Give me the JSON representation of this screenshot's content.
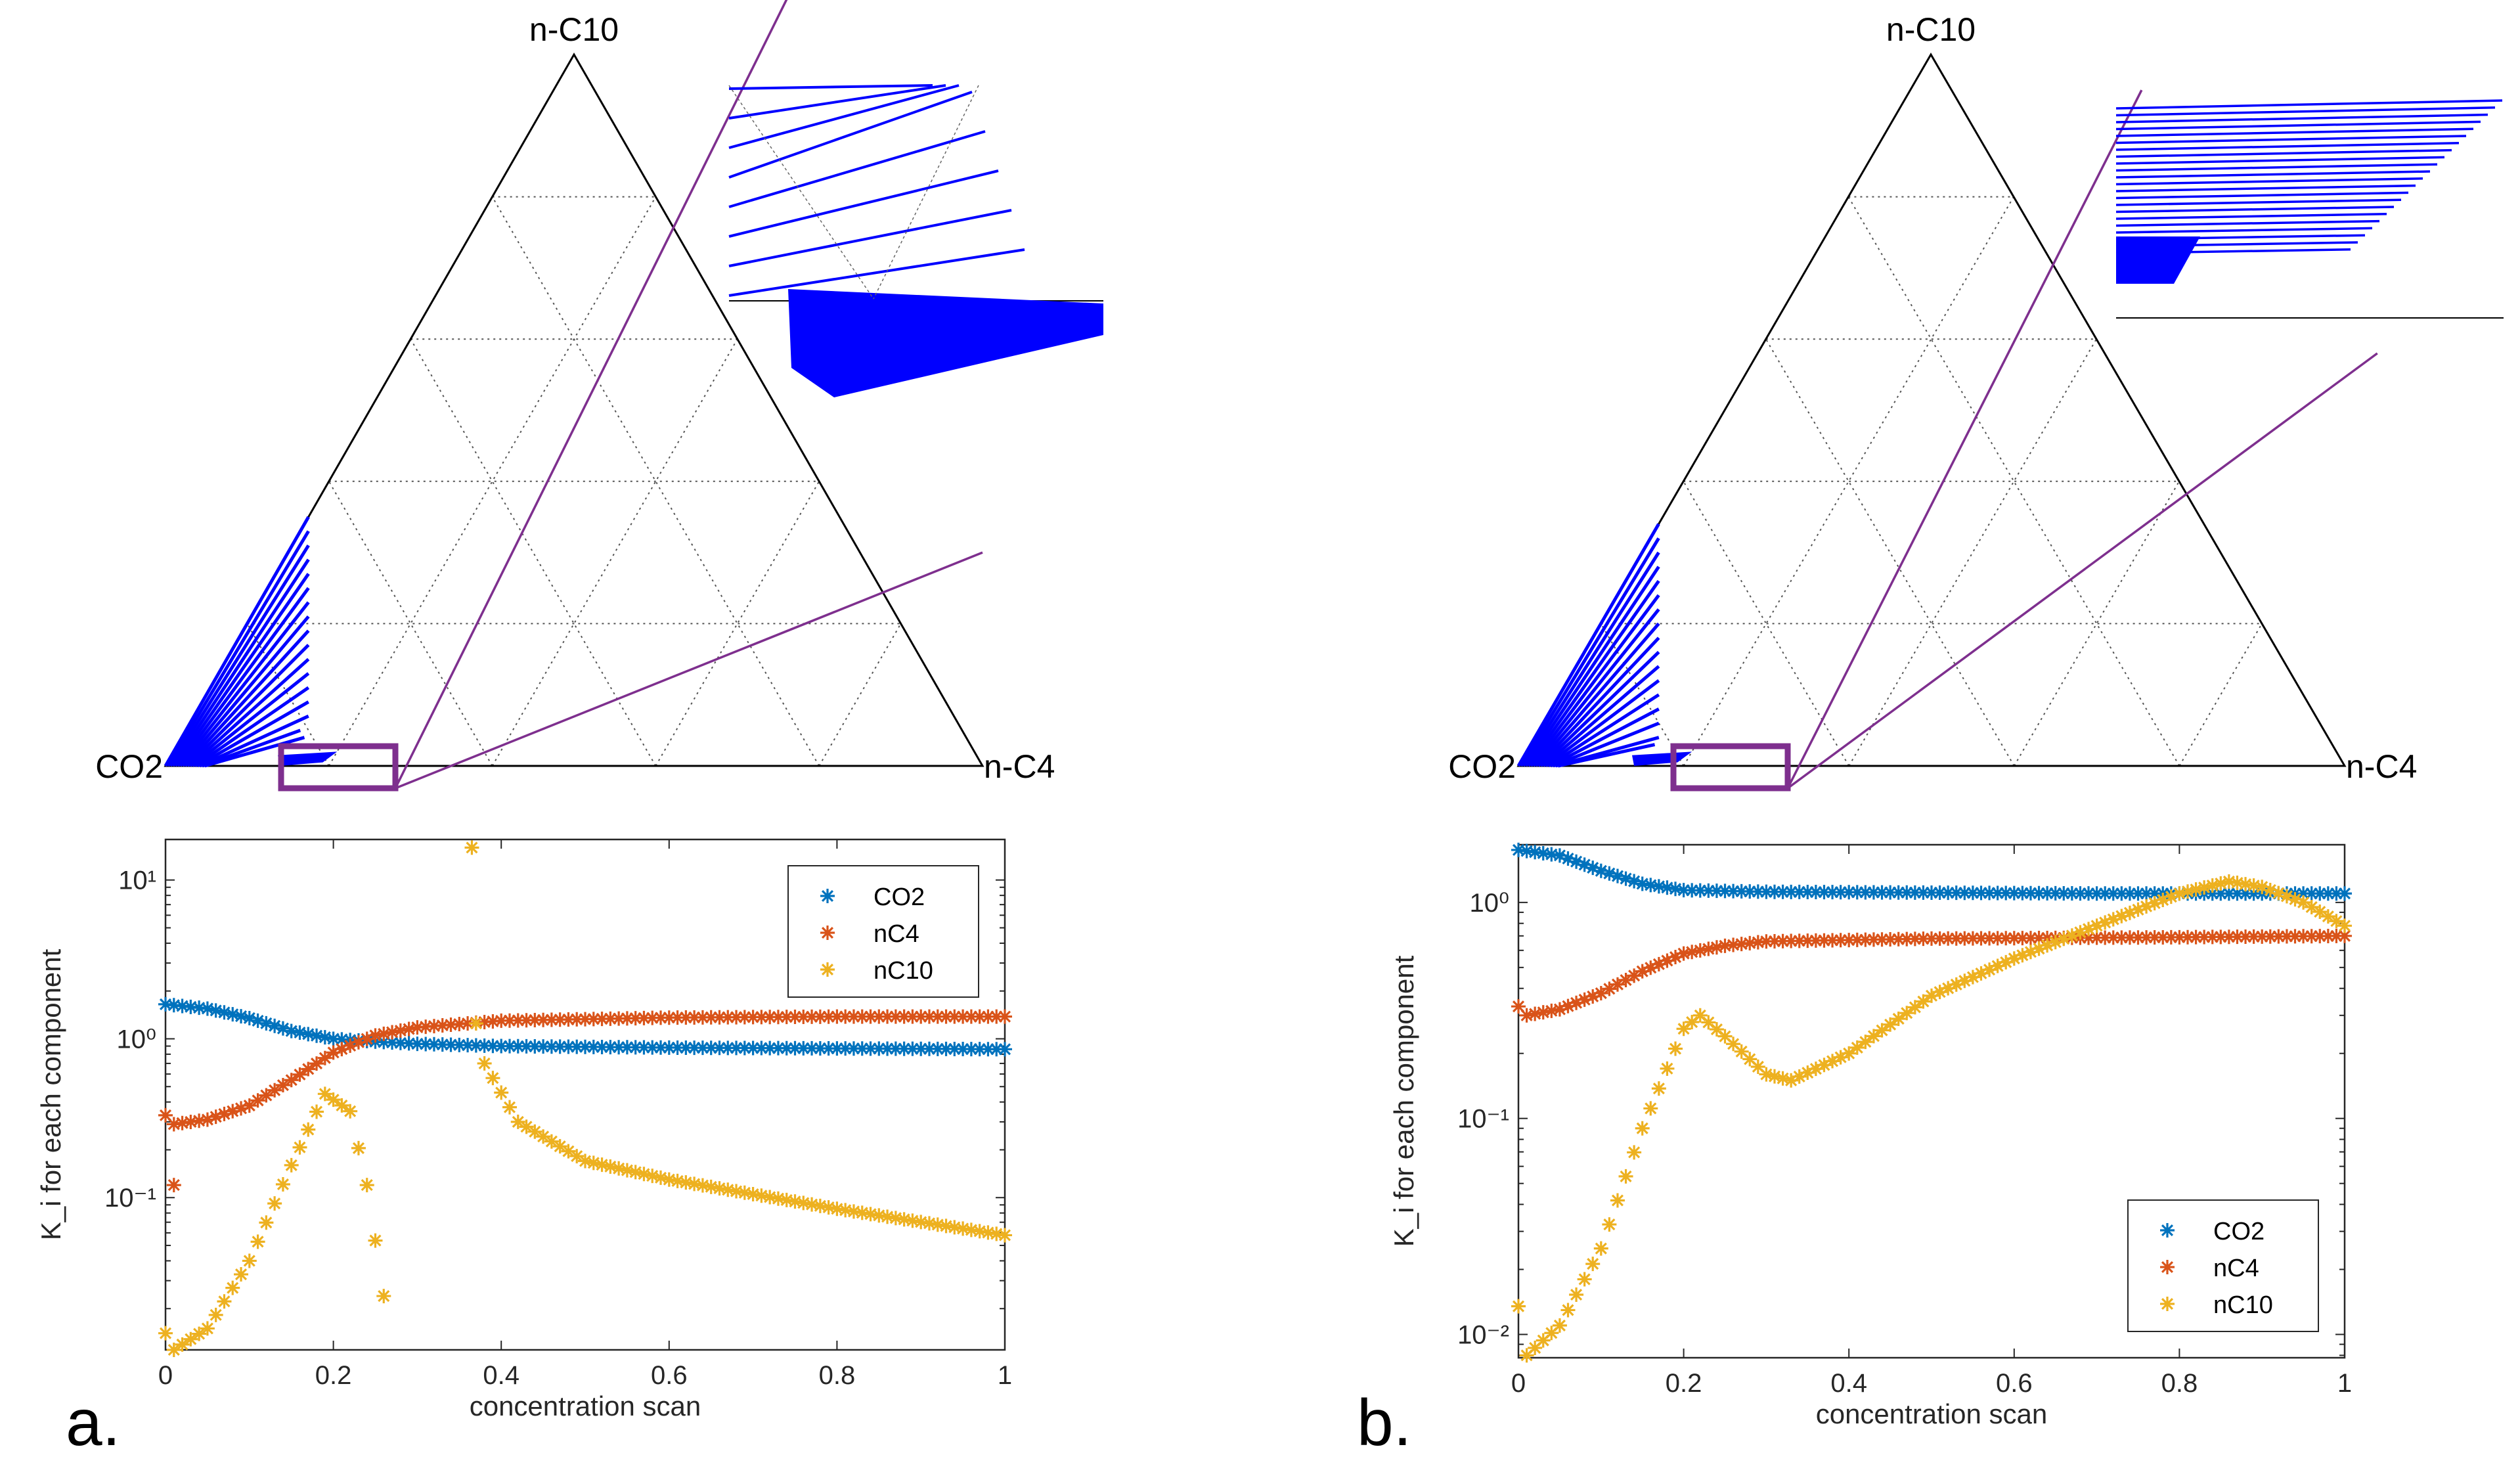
{
  "colors": {
    "co2": "#0072BD",
    "nc4": "#D95319",
    "nc10": "#EDB120",
    "tie": "#0000ff",
    "op": "#7e2f8e"
  },
  "panels": [
    {
      "panel_label": "a.",
      "ternary": {
        "top_label": "n-C10",
        "left_label": "CO2",
        "right_label": "n-C4",
        "tie_lines": [
          [
            0.35,
            0.0
          ],
          [
            0.33,
            0.01
          ],
          [
            0.31,
            0.02
          ],
          [
            0.29,
            0.03
          ],
          [
            0.27,
            0.04
          ],
          [
            0.25,
            0.05
          ],
          [
            0.23,
            0.06
          ],
          [
            0.21,
            0.07
          ],
          [
            0.19,
            0.08
          ],
          [
            0.17,
            0.09
          ],
          [
            0.15,
            0.1
          ],
          [
            0.13,
            0.11
          ],
          [
            0.11,
            0.12
          ],
          [
            0.09,
            0.13
          ],
          [
            0.07,
            0.14
          ],
          [
            0.05,
            0.14
          ],
          [
            0.04,
            0.15
          ]
        ],
        "operating_lines": [
          {
            "from": [
              0.0,
              0.27
            ],
            "to": [
              0.85,
              0.3
            ]
          },
          {
            "from": [
              0.0,
              0.3
            ],
            "to": [
              0.22,
              1.1
            ]
          }
        ]
      },
      "chart_data": {
        "type": "scatter",
        "title": "",
        "xlabel": "concentration scan",
        "ylabel": "K_i for each component",
        "yscale": "log",
        "xlim": [
          0,
          1
        ],
        "ylim": [
          0.011,
          18
        ],
        "xticks": [
          0,
          0.2,
          0.4,
          0.6,
          0.8,
          1
        ],
        "xtick_labels": [
          "0",
          "0.2",
          "0.4",
          "0.6",
          "0.8",
          "1"
        ],
        "yticks": [
          0.1,
          1,
          10
        ],
        "ytick_labels": [
          "10⁻¹",
          "10⁰",
          "10¹"
        ],
        "legend": "top-right",
        "series": [
          {
            "name": "CO2",
            "color_key": "co2",
            "points": [
              [
                0,
                1.65
              ],
              [
                0.05,
                1.55
              ],
              [
                0.1,
                1.35
              ],
              [
                0.15,
                1.12
              ],
              [
                0.2,
                1.0
              ],
              [
                0.25,
                0.96
              ],
              [
                0.3,
                0.93
              ],
              [
                0.4,
                0.9
              ],
              [
                0.6,
                0.88
              ],
              [
                0.8,
                0.87
              ],
              [
                1,
                0.86
              ]
            ]
          },
          {
            "name": "nC4",
            "color_key": "nc4",
            "points": [
              [
                0.01,
                0.29
              ],
              [
                0.05,
                0.31
              ],
              [
                0.1,
                0.38
              ],
              [
                0.15,
                0.55
              ],
              [
                0.2,
                0.82
              ],
              [
                0.25,
                1.05
              ],
              [
                0.3,
                1.18
              ],
              [
                0.4,
                1.3
              ],
              [
                0.6,
                1.36
              ],
              [
                0.8,
                1.38
              ],
              [
                1,
                1.38
              ]
            ]
          },
          {
            "name": "nC10",
            "color_key": "nc10",
            "points": [
              [
                0.01,
                0.011
              ],
              [
                0.05,
                0.015
              ],
              [
                0.1,
                0.04
              ],
              [
                0.15,
                0.16
              ],
              [
                0.19,
                0.45
              ],
              [
                0.22,
                0.35
              ],
              [
                0.24,
                0.12
              ],
              [
                0.26,
                0.024
              ],
              [
                0.38,
                0.7
              ],
              [
                0.42,
                0.3
              ],
              [
                0.5,
                0.17
              ],
              [
                0.6,
                0.13
              ],
              [
                0.8,
                0.085
              ],
              [
                1,
                0.058
              ]
            ]
          }
        ],
        "outliers": [
          {
            "series": "nC4",
            "x": 0.0,
            "y": 0.33
          },
          {
            "series": "nC4",
            "x": 0.01,
            "y": 0.12
          },
          {
            "series": "nC10",
            "x": 0.0,
            "y": 0.014
          },
          {
            "series": "nC10",
            "x": 0.365,
            "y": 16
          },
          {
            "series": "nC10",
            "x": 0.37,
            "y": 1.25
          }
        ]
      }
    },
    {
      "panel_label": "b.",
      "ternary": {
        "top_label": "n-C10",
        "left_label": "CO2",
        "right_label": "n-C4",
        "tie_lines": [
          [
            0.34,
            0.0
          ],
          [
            0.32,
            0.01
          ],
          [
            0.3,
            0.02
          ],
          [
            0.28,
            0.03
          ],
          [
            0.26,
            0.04
          ],
          [
            0.24,
            0.05
          ],
          [
            0.22,
            0.06
          ],
          [
            0.2,
            0.07
          ],
          [
            0.18,
            0.08
          ],
          [
            0.16,
            0.09
          ],
          [
            0.14,
            0.1
          ],
          [
            0.12,
            0.11
          ],
          [
            0.1,
            0.12
          ],
          [
            0.08,
            0.13
          ],
          [
            0.06,
            0.14
          ],
          [
            0.04,
            0.15
          ],
          [
            0.03,
            0.15
          ]
        ],
        "operating_lines": [
          {
            "from": [
              0.0,
              0.33
            ],
            "to": [
              0.75,
              0.58
            ]
          },
          {
            "from": [
              0.0,
              0.31
            ],
            "to": [
              0.28,
              0.95
            ]
          }
        ]
      },
      "chart_data": {
        "type": "scatter",
        "title": "",
        "xlabel": "concentration scan",
        "ylabel": "K_i for each component",
        "yscale": "log",
        "xlim": [
          0,
          1
        ],
        "ylim": [
          0.0078,
          1.85
        ],
        "xticks": [
          0,
          0.2,
          0.4,
          0.6,
          0.8,
          1
        ],
        "xtick_labels": [
          "0",
          "0.2",
          "0.4",
          "0.6",
          "0.8",
          "1"
        ],
        "yticks": [
          0.01,
          0.1,
          1
        ],
        "ytick_labels": [
          "10⁻²",
          "10⁻¹",
          "10⁰"
        ],
        "legend": "bottom-right",
        "series": [
          {
            "name": "CO2",
            "color_key": "co2",
            "points": [
              [
                0,
                1.75
              ],
              [
                0.05,
                1.65
              ],
              [
                0.1,
                1.4
              ],
              [
                0.15,
                1.22
              ],
              [
                0.2,
                1.14
              ],
              [
                0.3,
                1.12
              ],
              [
                0.5,
                1.11
              ],
              [
                0.7,
                1.1
              ],
              [
                0.9,
                1.1
              ],
              [
                1,
                1.1
              ]
            ]
          },
          {
            "name": "nC4",
            "color_key": "nc4",
            "points": [
              [
                0.01,
                0.3
              ],
              [
                0.05,
                0.32
              ],
              [
                0.1,
                0.38
              ],
              [
                0.15,
                0.48
              ],
              [
                0.2,
                0.58
              ],
              [
                0.25,
                0.63
              ],
              [
                0.3,
                0.66
              ],
              [
                0.5,
                0.68
              ],
              [
                0.8,
                0.69
              ],
              [
                1,
                0.7
              ]
            ]
          },
          {
            "name": "nC10",
            "color_key": "nc10",
            "points": [
              [
                0.01,
                0.008
              ],
              [
                0.05,
                0.011
              ],
              [
                0.1,
                0.025
              ],
              [
                0.15,
                0.09
              ],
              [
                0.2,
                0.26
              ],
              [
                0.22,
                0.3
              ],
              [
                0.25,
                0.24
              ],
              [
                0.3,
                0.16
              ],
              [
                0.33,
                0.15
              ],
              [
                0.4,
                0.2
              ],
              [
                0.5,
                0.37
              ],
              [
                0.6,
                0.55
              ],
              [
                0.7,
                0.78
              ],
              [
                0.8,
                1.1
              ],
              [
                0.86,
                1.25
              ],
              [
                0.9,
                1.18
              ],
              [
                0.95,
                1.0
              ],
              [
                1,
                0.78
              ]
            ]
          }
        ],
        "outliers": [
          {
            "series": "nC4",
            "x": 0.0,
            "y": 0.33
          },
          {
            "series": "nC10",
            "x": 0.0,
            "y": 0.0135
          }
        ]
      }
    }
  ]
}
